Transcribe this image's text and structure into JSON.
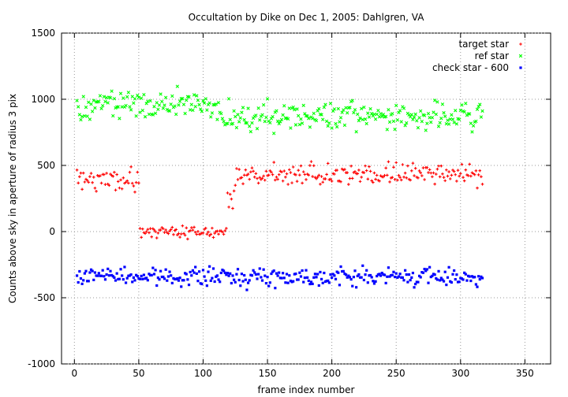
{
  "chart_data": {
    "type": "scatter",
    "title": "Occultation by Dike on Dec 1, 2005: Dahlgren, VA",
    "xlabel": "frame index number",
    "ylabel": "Counts above sky in aperture of radius 3 pix",
    "xlim": [
      -10,
      370
    ],
    "ylim": [
      -1000,
      1500
    ],
    "xticks": [
      0,
      50,
      100,
      150,
      200,
      250,
      300,
      350
    ],
    "yticks": [
      -1000,
      -500,
      0,
      500,
      1000,
      1500
    ],
    "xtick_labels": [
      "0",
      "50",
      "100",
      "150",
      "200",
      "250",
      "300",
      "350"
    ],
    "ytick_labels": [
      "-1000",
      "-500",
      "0",
      "500",
      "1000",
      "1500"
    ],
    "grid": true,
    "legend_position": "top-right",
    "series": [
      {
        "name": "target star",
        "color": "#ff0000",
        "marker": "plus",
        "segments": [
          {
            "x_start": 2,
            "x_end": 50,
            "mean": 400,
            "spread": 100
          },
          {
            "x_start": 51,
            "x_end": 118,
            "mean": 0,
            "spread": 50
          },
          {
            "x_start": 119,
            "x_end": 125,
            "mean": 250,
            "spread": 90
          },
          {
            "x_start": 126,
            "x_end": 317,
            "mean": 430,
            "spread": 90
          }
        ]
      },
      {
        "name": "ref star",
        "color": "#00ff00",
        "marker": "cross",
        "segments": [
          {
            "x_start": 2,
            "x_end": 110,
            "mean": 960,
            "spread": 110
          },
          {
            "x_start": 111,
            "x_end": 317,
            "mean": 870,
            "spread": 120
          }
        ]
      },
      {
        "name": "check star - 600",
        "color": "#0000ff",
        "marker": "square",
        "segments": [
          {
            "x_start": 2,
            "x_end": 317,
            "mean": -340,
            "spread": 75
          }
        ]
      }
    ]
  }
}
